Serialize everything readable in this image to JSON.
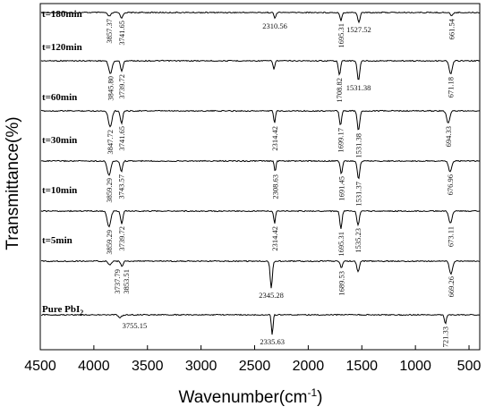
{
  "chart_data": {
    "type": "line",
    "title": "",
    "xlabel": "Wavenumber(cm",
    "xlabel_sup": "-1",
    "xlabel_close": ")",
    "ylabel": "Transmittance(%)",
    "xlim": [
      4500,
      400
    ],
    "x_reversed": true,
    "x_ticks": [
      4500,
      4000,
      3500,
      3000,
      2500,
      2000,
      1500,
      1000,
      500
    ],
    "y_ticks_shown": false,
    "line_color": "#000000",
    "series": [
      {
        "label_text": "t=180min",
        "label_sub": "",
        "features": [
          {
            "x": 3857,
            "depth": 4,
            "width": 45
          },
          {
            "x": 3741,
            "depth": 6,
            "width": 35
          },
          {
            "x": 2311,
            "depth": 7,
            "width": 22
          },
          {
            "x": 1695,
            "depth": 9,
            "width": 25
          },
          {
            "x": 1528,
            "depth": 11,
            "width": 30
          },
          {
            "x": 662,
            "depth": 4,
            "width": 30
          }
        ],
        "annotations": [
          {
            "text": "3857.37",
            "x": 3857,
            "rotate": true
          },
          {
            "text": "3741.65",
            "x": 3741,
            "rotate": true
          },
          {
            "text": "2310.56",
            "x": 2311,
            "rotate": false
          },
          {
            "text": "1695.31",
            "x": 1695,
            "rotate": true
          },
          {
            "text": "1527.52",
            "x": 1528,
            "rotate": false
          },
          {
            "text": "661.54",
            "x": 662,
            "rotate": true
          }
        ]
      },
      {
        "label_text": "t=120min",
        "label_sub": "",
        "features": [
          {
            "x": 3846,
            "depth": 14,
            "width": 45
          },
          {
            "x": 3740,
            "depth": 12,
            "width": 30
          },
          {
            "x": 2320,
            "depth": 10,
            "width": 22
          },
          {
            "x": 1709,
            "depth": 16,
            "width": 28
          },
          {
            "x": 1531,
            "depth": 22,
            "width": 32
          },
          {
            "x": 671,
            "depth": 15,
            "width": 40
          }
        ],
        "annotations": [
          {
            "text": "3845.80",
            "x": 3846,
            "rotate": true
          },
          {
            "text": "3739.72",
            "x": 3740,
            "rotate": true
          },
          {
            "text": "1708.82",
            "x": 1709,
            "rotate": true
          },
          {
            "text": "1531.38",
            "x": 1531,
            "rotate": false
          },
          {
            "text": "671.18",
            "x": 671,
            "rotate": true
          }
        ]
      },
      {
        "label_text": "t=60min",
        "label_sub": "",
        "features": [
          {
            "x": 3848,
            "depth": 18,
            "width": 45
          },
          {
            "x": 3742,
            "depth": 14,
            "width": 30
          },
          {
            "x": 2314,
            "depth": 14,
            "width": 22
          },
          {
            "x": 1699,
            "depth": 16,
            "width": 28
          },
          {
            "x": 1531,
            "depth": 22,
            "width": 32
          },
          {
            "x": 694,
            "depth": 14,
            "width": 40
          }
        ],
        "annotations": [
          {
            "text": "3847.72",
            "x": 3848,
            "rotate": true
          },
          {
            "text": "3741.65",
            "x": 3742,
            "rotate": true
          },
          {
            "text": "2314.42",
            "x": 2314,
            "rotate": true
          },
          {
            "text": "1699.17",
            "x": 1699,
            "rotate": true
          },
          {
            "text": "1531.38",
            "x": 1531,
            "rotate": true
          },
          {
            "text": "694.33",
            "x": 694,
            "rotate": true
          }
        ]
      },
      {
        "label_text": "t=30min",
        "label_sub": "",
        "features": [
          {
            "x": 3859,
            "depth": 16,
            "width": 45
          },
          {
            "x": 3744,
            "depth": 12,
            "width": 30
          },
          {
            "x": 2309,
            "depth": 12,
            "width": 22
          },
          {
            "x": 1691,
            "depth": 14,
            "width": 28
          },
          {
            "x": 1531,
            "depth": 20,
            "width": 32
          },
          {
            "x": 677,
            "depth": 12,
            "width": 40
          }
        ],
        "annotations": [
          {
            "text": "3859.29",
            "x": 3859,
            "rotate": true
          },
          {
            "text": "3743.57",
            "x": 3744,
            "rotate": true
          },
          {
            "text": "2308.63",
            "x": 2309,
            "rotate": true
          },
          {
            "text": "1691.45",
            "x": 1691,
            "rotate": true
          },
          {
            "text": "1531.37",
            "x": 1531,
            "rotate": true
          },
          {
            "text": "676.96",
            "x": 677,
            "rotate": true
          }
        ]
      },
      {
        "label_text": "t=10min",
        "label_sub": "",
        "features": [
          {
            "x": 3859,
            "depth": 18,
            "width": 45
          },
          {
            "x": 3740,
            "depth": 14,
            "width": 30
          },
          {
            "x": 2314,
            "depth": 14,
            "width": 22
          },
          {
            "x": 1695,
            "depth": 20,
            "width": 28
          },
          {
            "x": 1535,
            "depth": 16,
            "width": 32
          },
          {
            "x": 673,
            "depth": 14,
            "width": 40
          }
        ],
        "annotations": [
          {
            "text": "3859.29",
            "x": 3859,
            "rotate": true
          },
          {
            "text": "3739.72",
            "x": 3740,
            "rotate": true
          },
          {
            "text": "2314.42",
            "x": 2314,
            "rotate": true
          },
          {
            "text": "1695.31",
            "x": 1695,
            "rotate": true
          },
          {
            "text": "1535.23",
            "x": 1535,
            "rotate": true
          },
          {
            "text": "673.11",
            "x": 673,
            "rotate": true
          }
        ]
      },
      {
        "label_text": "t=5min",
        "label_sub": "",
        "features": [
          {
            "x": 3738,
            "depth": 6,
            "width": 30
          },
          {
            "x": 3854,
            "depth": 4,
            "width": 40
          },
          {
            "x": 2345,
            "depth": 30,
            "width": 28
          },
          {
            "x": 1690,
            "depth": 8,
            "width": 28
          },
          {
            "x": 1535,
            "depth": 12,
            "width": 32
          },
          {
            "x": 669,
            "depth": 14,
            "width": 40
          }
        ],
        "annotations": [
          {
            "text": "3737.79",
            "x": 3780,
            "rotate": true
          },
          {
            "text": "3853.51",
            "x": 3700,
            "rotate": true
          },
          {
            "text": "2345.28",
            "x": 2345,
            "rotate": false
          },
          {
            "text": "1689.53",
            "x": 1690,
            "rotate": true
          },
          {
            "text": "669.26",
            "x": 669,
            "rotate": true
          }
        ]
      },
      {
        "label_text": "Pure PbI",
        "label_sub": "2",
        "features": [
          {
            "x": 3755,
            "depth": 3,
            "width": 40
          },
          {
            "x": 2336,
            "depth": 22,
            "width": 22
          },
          {
            "x": 721,
            "depth": 10,
            "width": 25
          }
        ],
        "annotations": [
          {
            "text": "3755.15",
            "x": 3620,
            "rotate": false
          },
          {
            "text": "2335.63",
            "x": 2336,
            "rotate": false
          },
          {
            "text": "721.33",
            "x": 721,
            "rotate": true
          }
        ]
      }
    ]
  }
}
